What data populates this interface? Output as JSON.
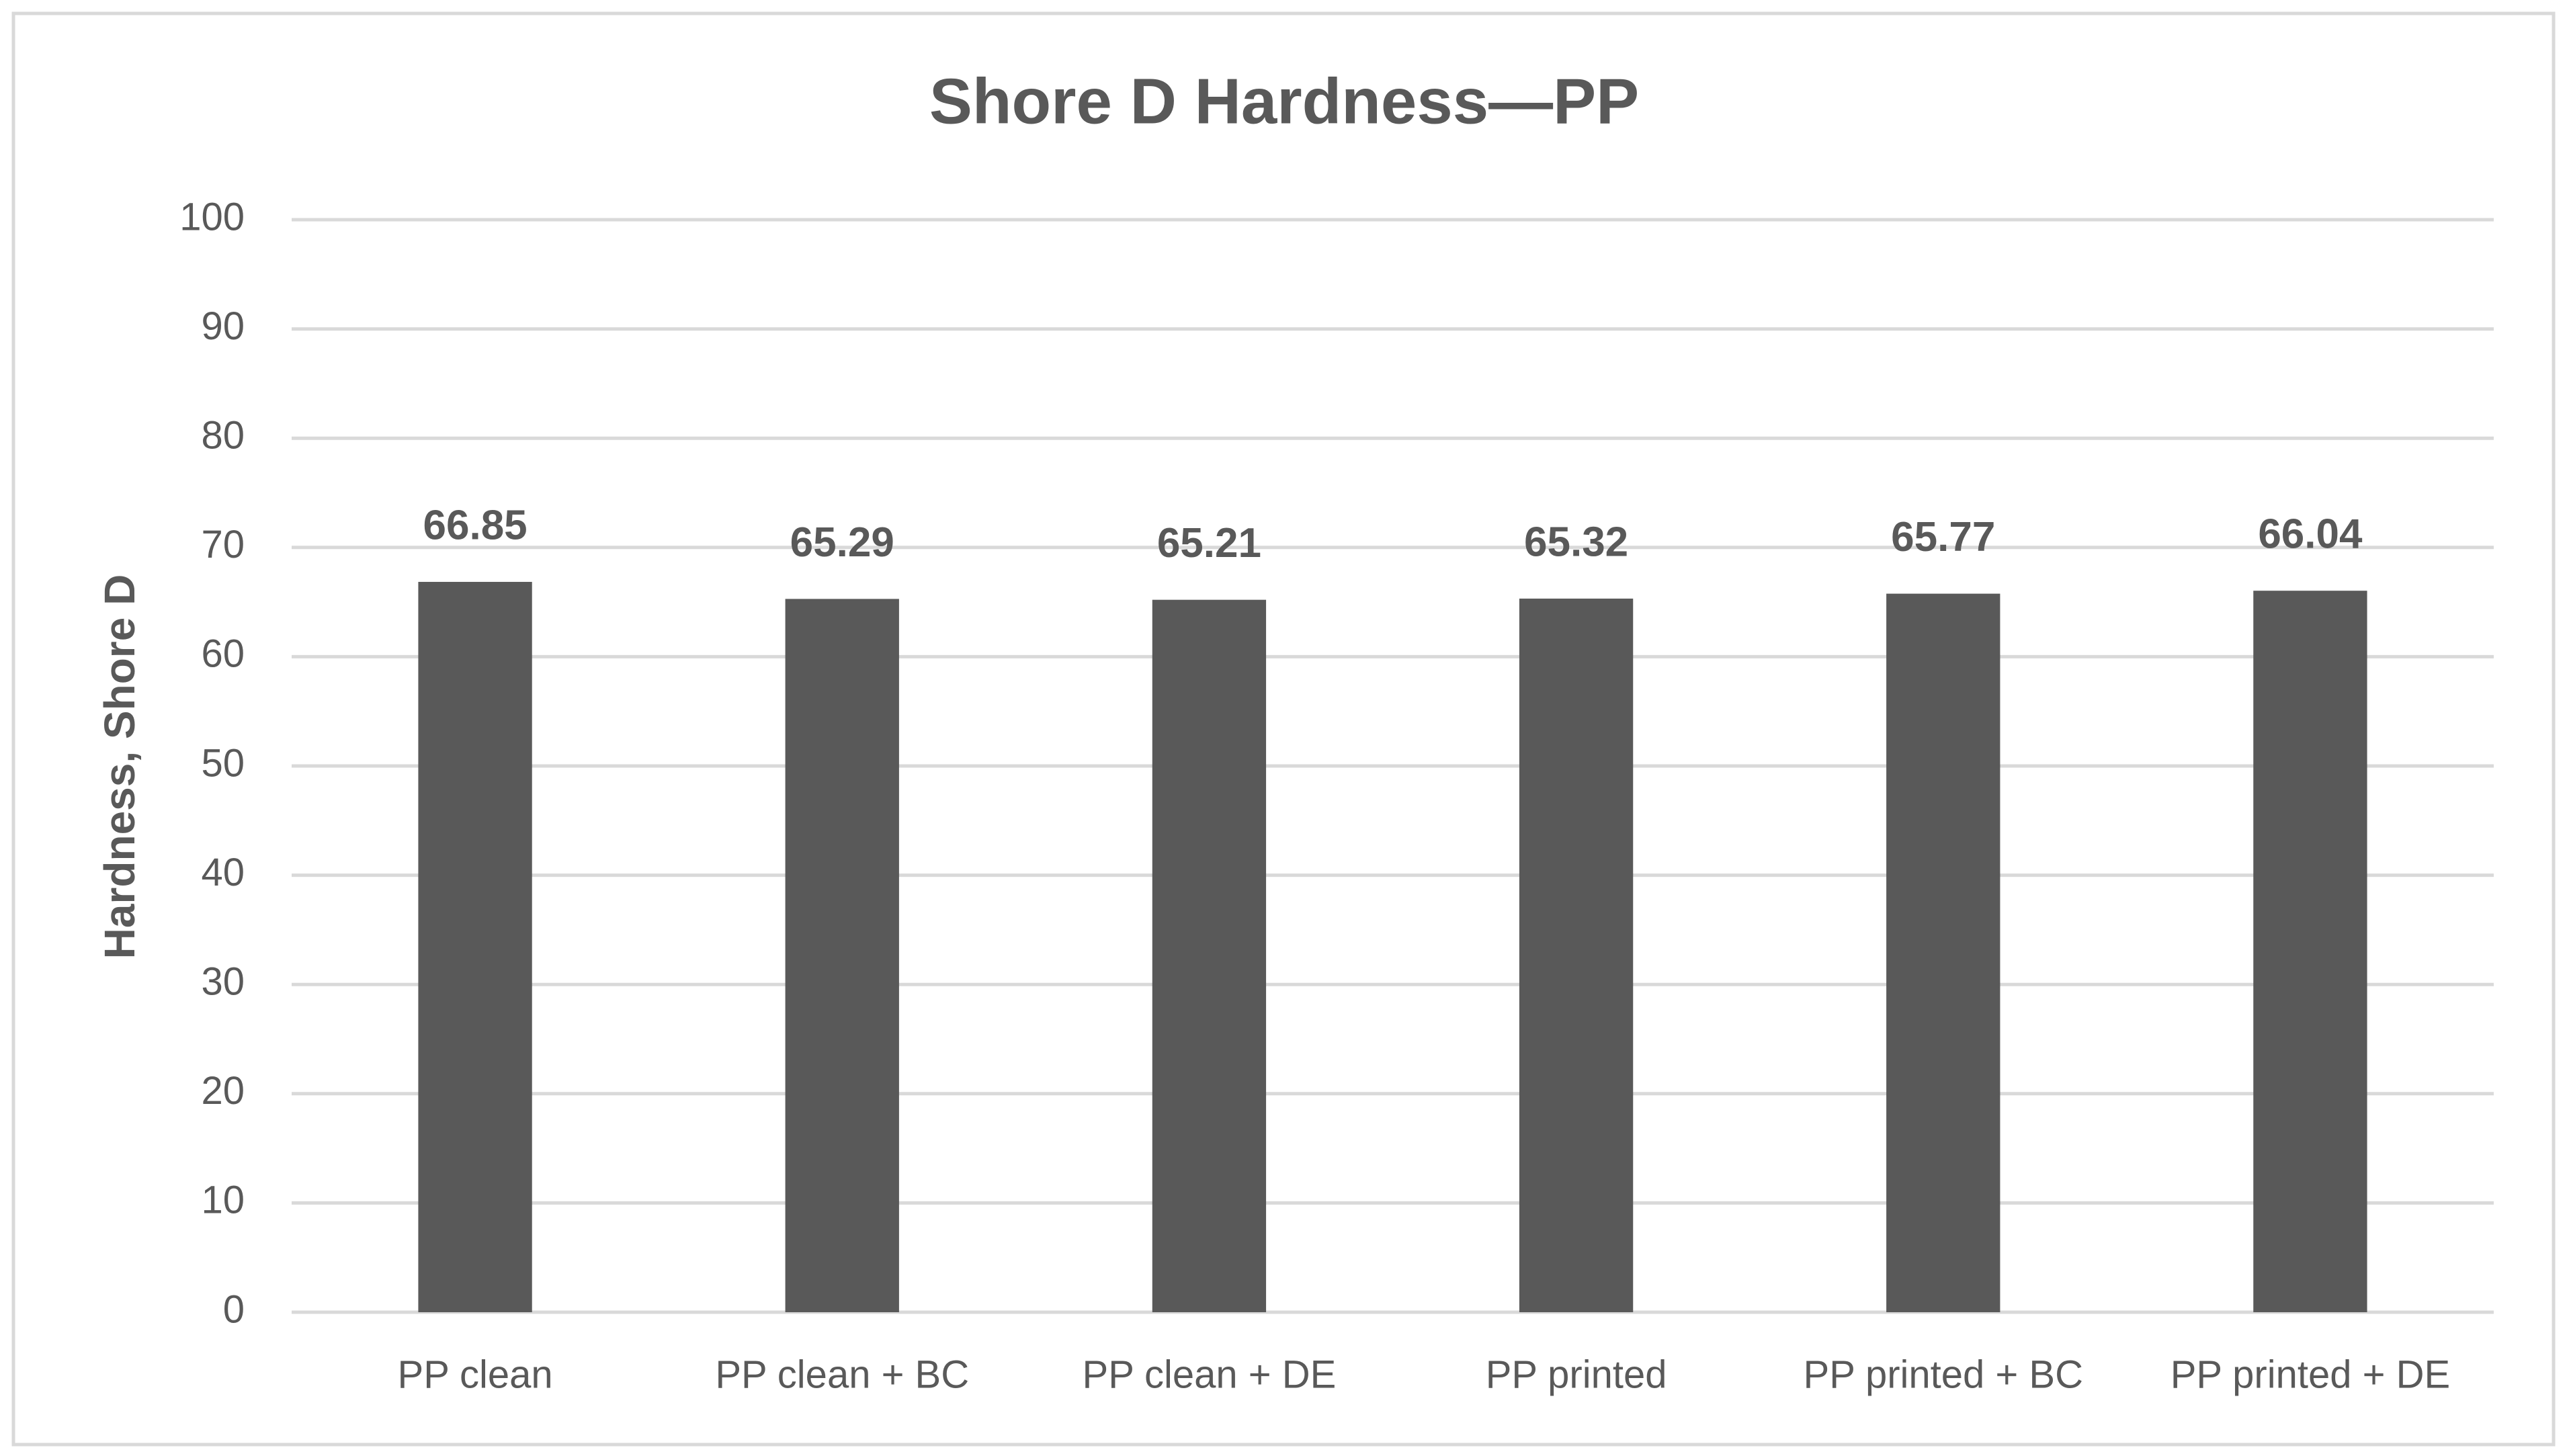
{
  "chart_data": {
    "type": "bar",
    "title": "Shore D Hardness—PP",
    "y_label": "Hardness, Shore D",
    "categories": [
      "PP clean",
      "PP clean + BC",
      "PP clean + DE",
      "PP printed",
      "PP printed + BC",
      "PP printed + DE"
    ],
    "values": [
      66.85,
      65.29,
      65.21,
      65.32,
      65.77,
      66.04
    ],
    "color": "#595959",
    "ylim": [
      0,
      100
    ],
    "yticks": [
      0,
      10,
      20,
      30,
      40,
      50,
      60,
      70,
      80,
      90,
      100
    ],
    "grid": true
  }
}
